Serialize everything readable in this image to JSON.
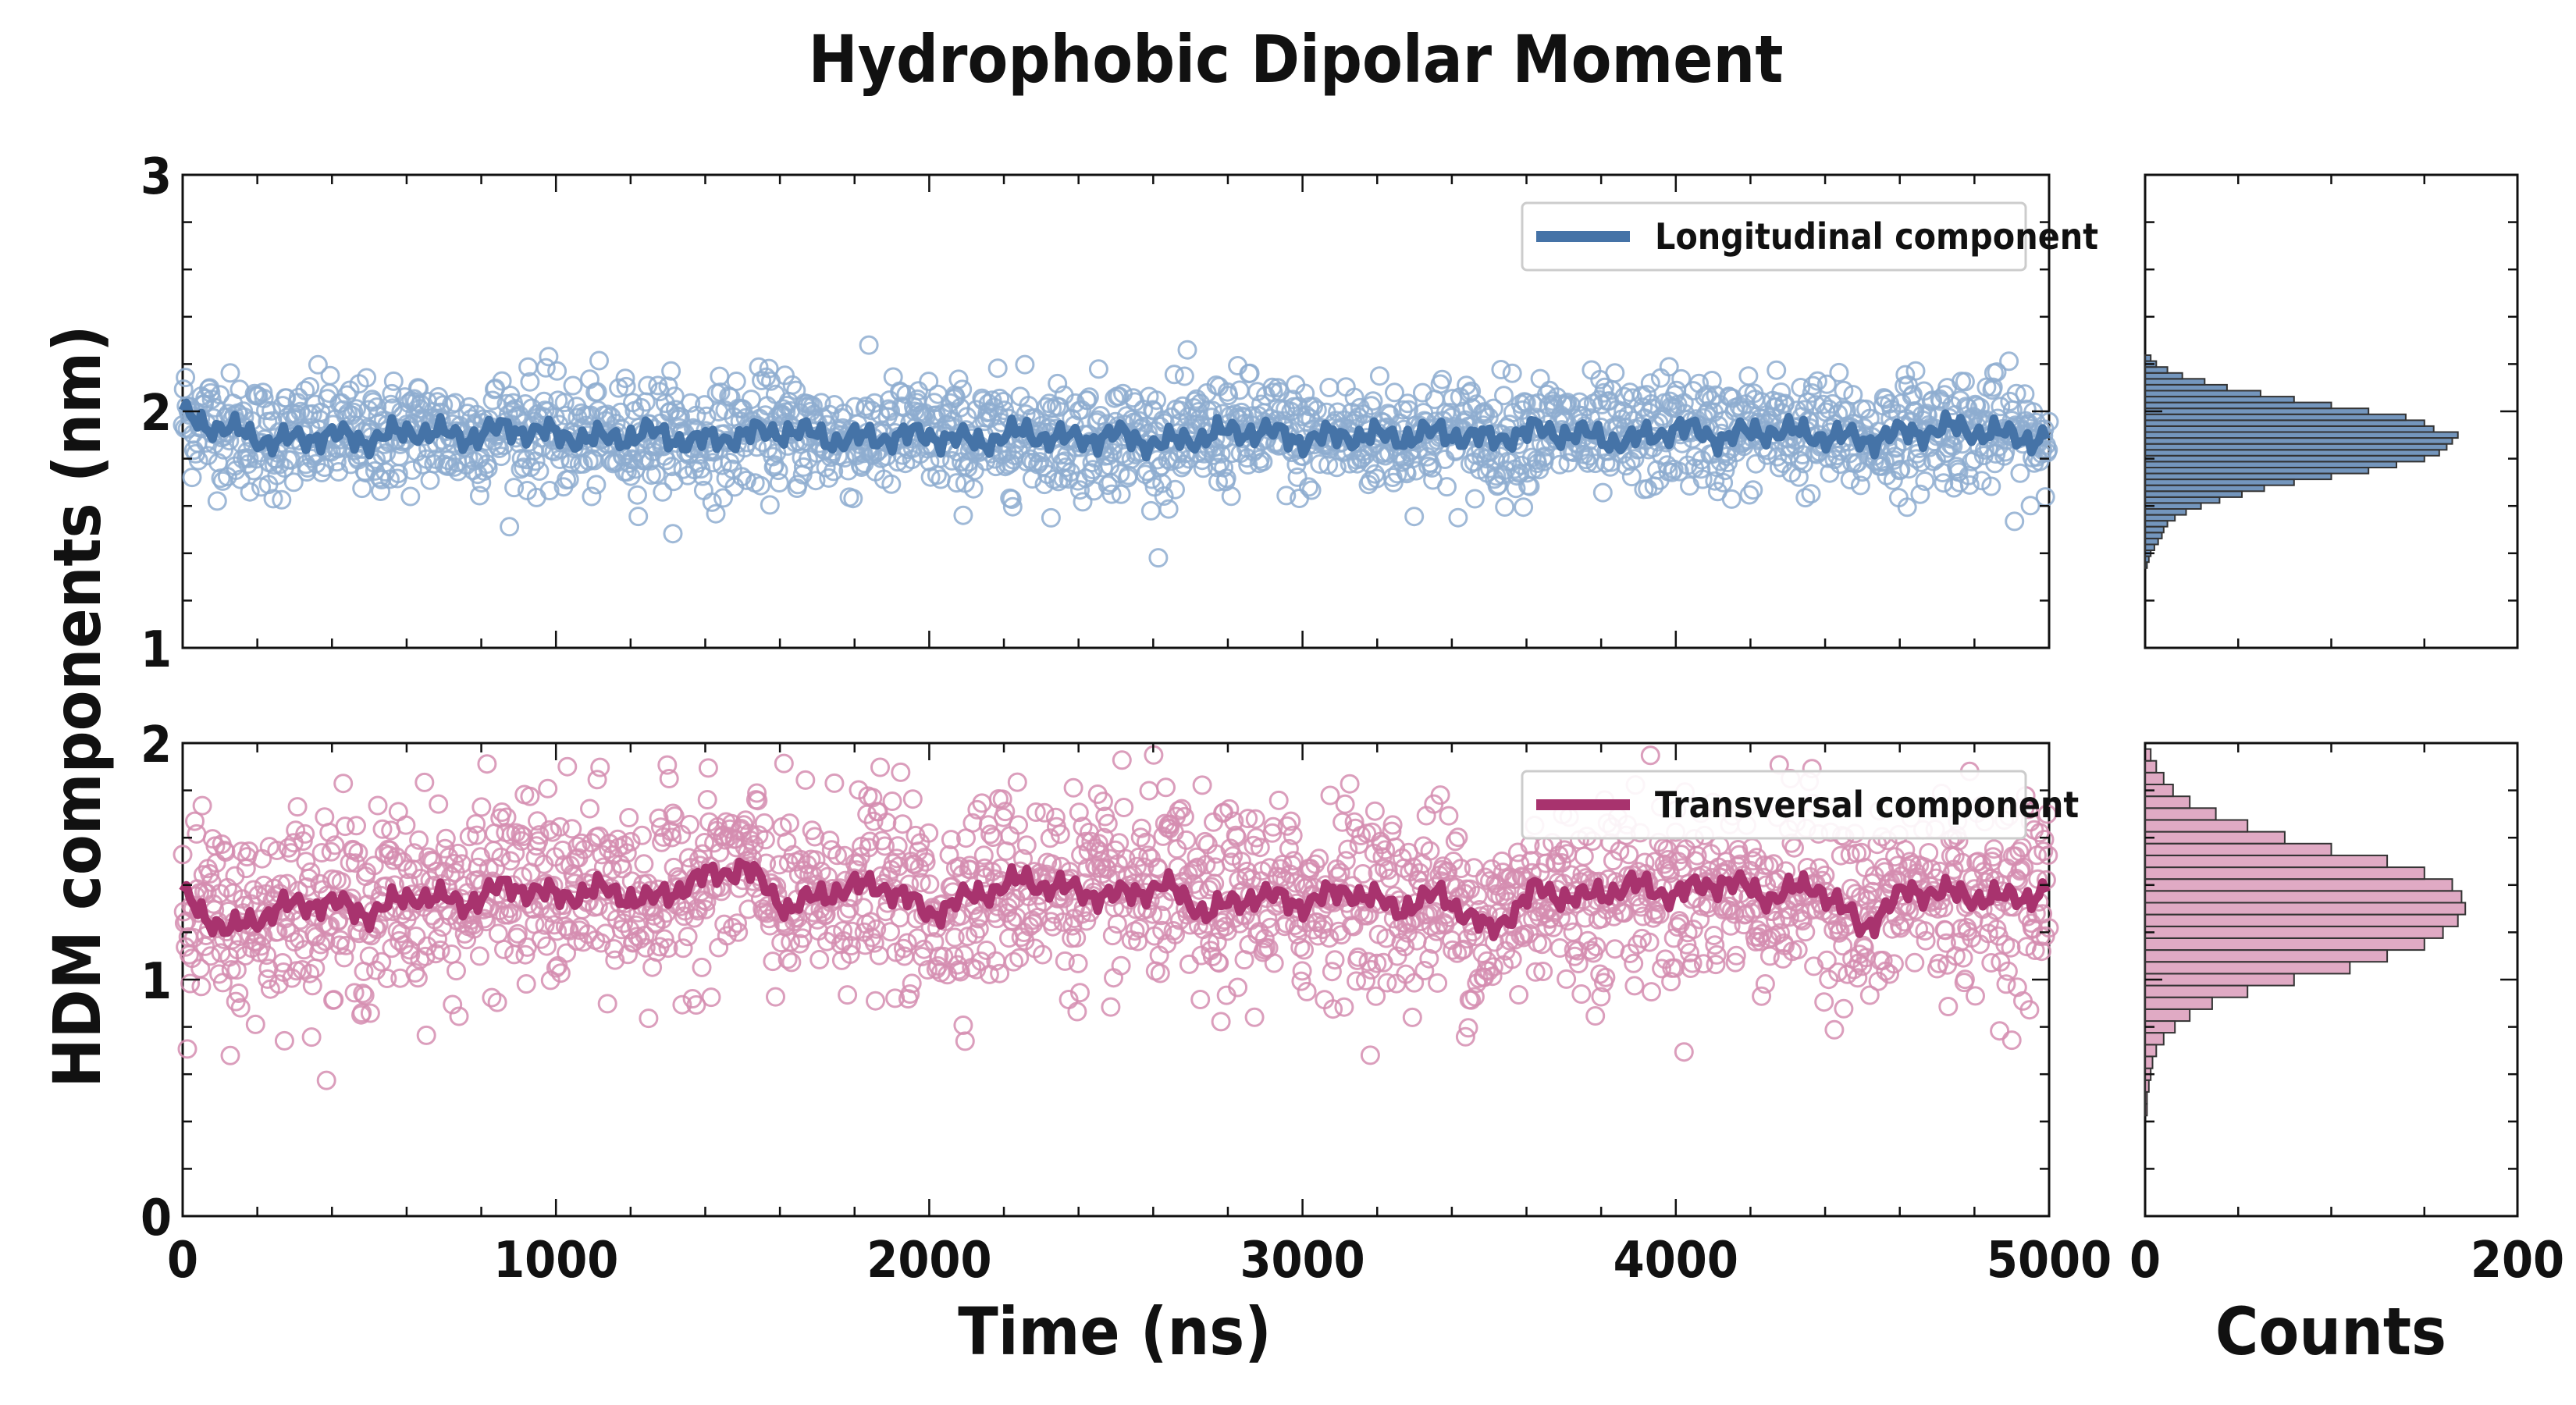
{
  "figure": {
    "title": "Hydrophobic Dipolar Moment",
    "ylabel": "HDM components (nm)",
    "xlabel": "Time (ns)",
    "hist_xlabel": "Counts"
  },
  "colors": {
    "longitudinal": "#4573a7",
    "longitudinal_light": "#8eadd0",
    "transversal": "#a8336e",
    "transversal_light": "#d58db0",
    "hist_edge": "#333333"
  },
  "chart_data": [
    {
      "type": "scatter",
      "panel": "top",
      "series": [
        {
          "name": "Longitudinal component",
          "kind": "scatter-with-running-mean",
          "n_points": 2000,
          "x_start": 0,
          "x_end": 5000,
          "mean": 1.9,
          "spread_sd": 0.12,
          "running_mean_samples": [
            1.98,
            1.92,
            1.87,
            1.9,
            1.88,
            1.92,
            1.89,
            1.93,
            1.9,
            1.88,
            1.91,
            1.87,
            1.9,
            1.92,
            1.88,
            1.89,
            1.9,
            1.87,
            1.91,
            1.88,
            1.9,
            1.86,
            1.9,
            1.92,
            1.88,
            1.9,
            1.89,
            1.91,
            1.88,
            1.92,
            1.9,
            1.87,
            1.93,
            1.89,
            1.92,
            1.9,
            1.88,
            1.91,
            1.93,
            1.9,
            1.88
          ]
        }
      ],
      "xlim": [
        0,
        5000
      ],
      "ylim": [
        1,
        3
      ],
      "yticks": [
        "1",
        "2",
        "3"
      ],
      "legend": "top-right"
    },
    {
      "type": "scatter",
      "panel": "bottom",
      "series": [
        {
          "name": "Transversal component",
          "kind": "scatter-with-running-mean",
          "n_points": 2000,
          "x_start": 0,
          "x_end": 5000,
          "mean": 1.35,
          "spread_sd": 0.2,
          "running_mean_samples": [
            1.35,
            1.2,
            1.3,
            1.33,
            1.28,
            1.36,
            1.32,
            1.4,
            1.35,
            1.38,
            1.33,
            1.42,
            1.48,
            1.3,
            1.38,
            1.4,
            1.28,
            1.36,
            1.42,
            1.38,
            1.35,
            1.4,
            1.28,
            1.36,
            1.32,
            1.38,
            1.3,
            1.36,
            1.2,
            1.38,
            1.34,
            1.4,
            1.36,
            1.42,
            1.35,
            1.4,
            1.22,
            1.38,
            1.36,
            1.34,
            1.37
          ]
        }
      ],
      "xlim": [
        0,
        5000
      ],
      "ylim": [
        0,
        2
      ],
      "xticks": [
        "0",
        "1000",
        "2000",
        "3000",
        "4000",
        "5000"
      ],
      "yticks": [
        "0",
        "1",
        "2"
      ],
      "xlabel": "Time (ns)",
      "legend": "top-right"
    },
    {
      "type": "bar",
      "panel": "top-histogram",
      "orientation": "horizontal",
      "series_name": "Longitudinal component",
      "bin_centers": [
        1.35,
        1.375,
        1.4,
        1.425,
        1.45,
        1.475,
        1.5,
        1.525,
        1.55,
        1.575,
        1.6,
        1.625,
        1.65,
        1.675,
        1.7,
        1.725,
        1.75,
        1.775,
        1.8,
        1.825,
        1.85,
        1.875,
        1.9,
        1.925,
        1.95,
        1.975,
        2.0,
        2.025,
        2.05,
        2.075,
        2.1,
        2.125,
        2.15,
        2.175,
        2.2,
        2.225
      ],
      "counts": [
        1,
        2,
        3,
        5,
        7,
        9,
        10,
        12,
        16,
        22,
        30,
        40,
        52,
        64,
        80,
        100,
        120,
        135,
        150,
        158,
        162,
        165,
        168,
        155,
        150,
        140,
        120,
        100,
        80,
        62,
        44,
        32,
        20,
        12,
        6,
        3
      ],
      "xlim": [
        0,
        200
      ],
      "ylim": [
        1,
        3
      ]
    },
    {
      "type": "bar",
      "panel": "bottom-histogram",
      "orientation": "horizontal",
      "series_name": "Transversal component",
      "bin_centers": [
        0.45,
        0.5,
        0.55,
        0.6,
        0.65,
        0.7,
        0.75,
        0.8,
        0.85,
        0.9,
        0.95,
        1.0,
        1.05,
        1.1,
        1.15,
        1.2,
        1.25,
        1.3,
        1.35,
        1.4,
        1.45,
        1.5,
        1.55,
        1.6,
        1.65,
        1.7,
        1.75,
        1.8,
        1.85,
        1.9,
        1.95
      ],
      "counts": [
        1,
        1,
        2,
        3,
        4,
        6,
        10,
        16,
        24,
        36,
        55,
        80,
        110,
        130,
        150,
        160,
        168,
        172,
        170,
        165,
        150,
        130,
        100,
        75,
        55,
        38,
        24,
        15,
        10,
        6,
        3
      ],
      "xlim": [
        0,
        200
      ],
      "xticks": [
        "0",
        "200"
      ],
      "ylim": [
        0,
        2
      ]
    }
  ]
}
